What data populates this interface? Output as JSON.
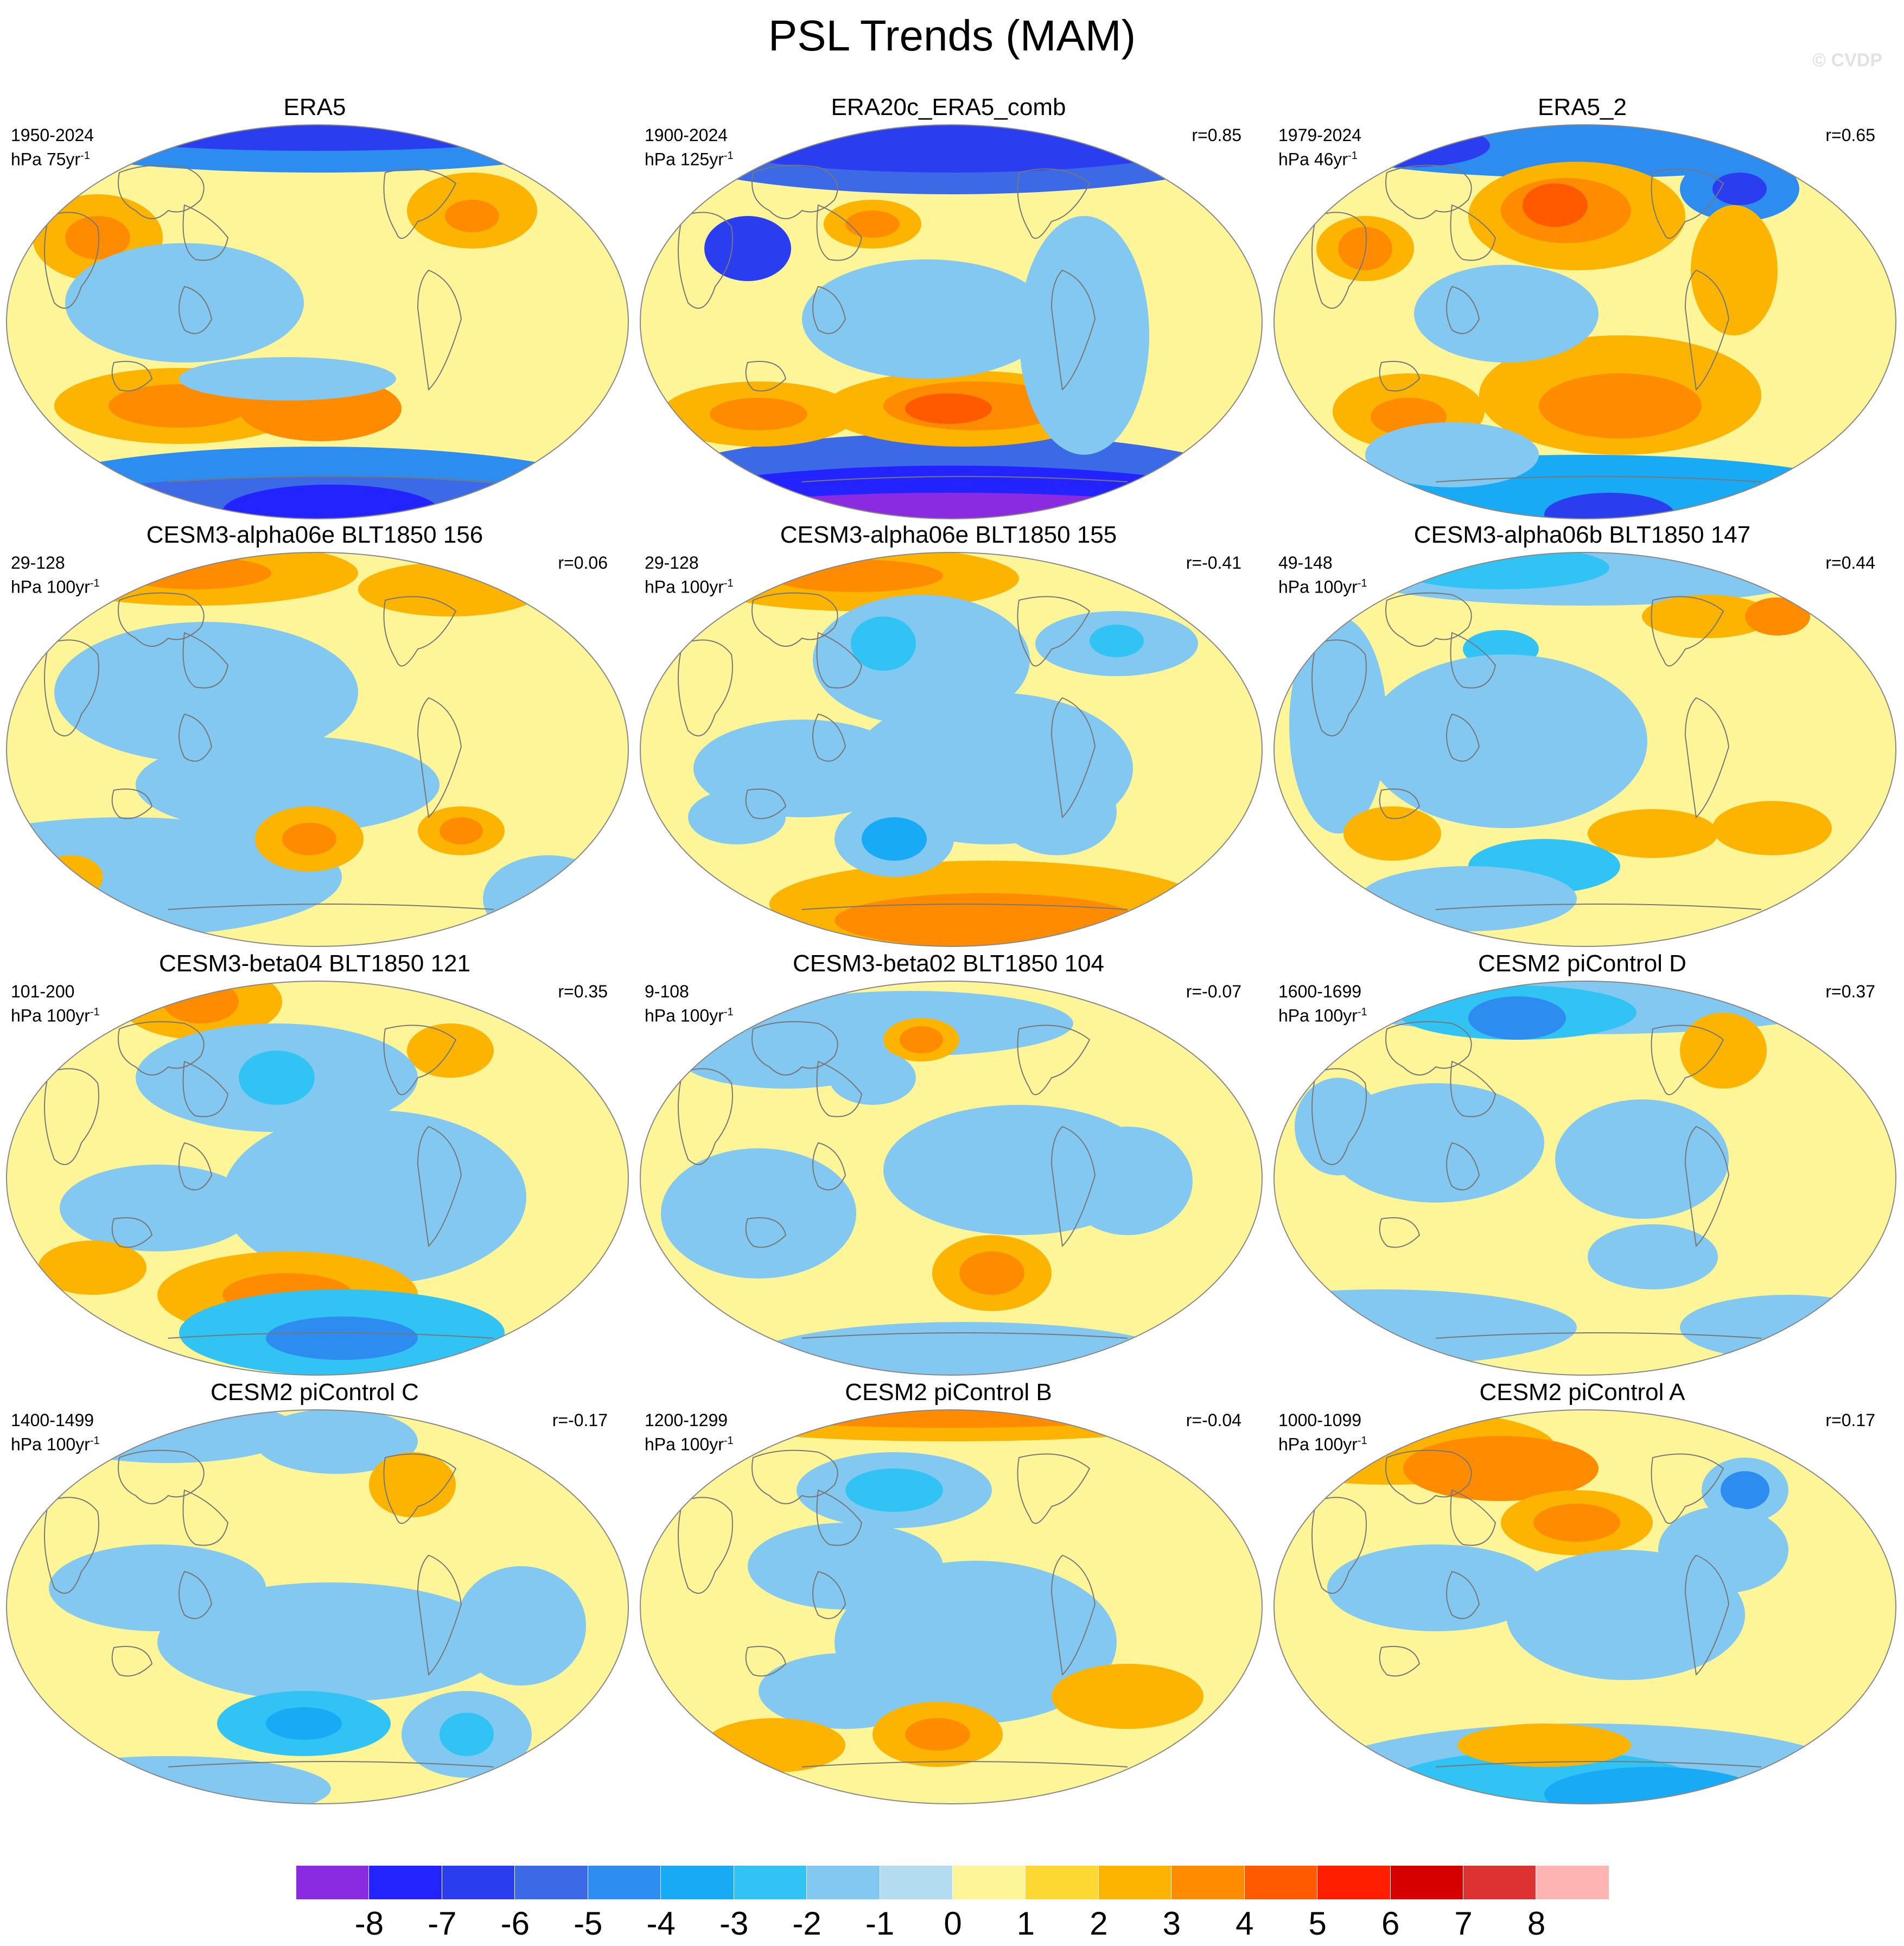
{
  "title": "PSL Trends (MAM)",
  "watermark": "© CVDP",
  "colors": {
    "neutral_blue": "#b4dcf0",
    "neutral_yellow": "#fdf598",
    "ocean_bg": "#b4dcf0",
    "coast": "#777777"
  },
  "panels": [
    {
      "title": "ERA5",
      "period": "1950-2024",
      "units_prefix": "hPa 75yr",
      "exponent": "-1",
      "r": ""
    },
    {
      "title": "ERA20c_ERA5_comb",
      "period": "1900-2024",
      "units_prefix": "hPa 125yr",
      "exponent": "-1",
      "r": "r=0.85"
    },
    {
      "title": "ERA5_2",
      "period": "1979-2024",
      "units_prefix": "hPa 46yr",
      "exponent": "-1",
      "r": "r=0.65"
    },
    {
      "title": "CESM3-alpha06e BLT1850 156",
      "period": "29-128",
      "units_prefix": "hPa 100yr",
      "exponent": "-1",
      "r": "r=0.06"
    },
    {
      "title": "CESM3-alpha06e BLT1850 155",
      "period": "29-128",
      "units_prefix": "hPa 100yr",
      "exponent": "-1",
      "r": "r=-0.41"
    },
    {
      "title": "CESM3-alpha06b BLT1850 147",
      "period": "49-148",
      "units_prefix": "hPa 100yr",
      "exponent": "-1",
      "r": "r=0.44"
    },
    {
      "title": "CESM3-beta04 BLT1850 121",
      "period": "101-200",
      "units_prefix": "hPa 100yr",
      "exponent": "-1",
      "r": "r=0.35"
    },
    {
      "title": "CESM3-beta02 BLT1850 104",
      "period": "9-108",
      "units_prefix": "hPa 100yr",
      "exponent": "-1",
      "r": "r=-0.07"
    },
    {
      "title": "CESM2 piControl D",
      "period": "1600-1699",
      "units_prefix": "hPa 100yr",
      "exponent": "-1",
      "r": "r=0.37"
    },
    {
      "title": "CESM2 piControl C",
      "period": "1400-1499",
      "units_prefix": "hPa 100yr",
      "exponent": "-1",
      "r": "r=-0.17"
    },
    {
      "title": "CESM2 piControl B",
      "period": "1200-1299",
      "units_prefix": "hPa 100yr",
      "exponent": "-1",
      "r": "r=-0.04"
    },
    {
      "title": "CESM2 piControl A",
      "period": "1000-1099",
      "units_prefix": "hPa 100yr",
      "exponent": "-1",
      "r": "r=0.17"
    }
  ],
  "colorbar": {
    "labels": [
      "-8",
      "-7",
      "-6",
      "-5",
      "-4",
      "-3",
      "-2",
      "-1",
      "0",
      "1",
      "2",
      "3",
      "4",
      "5",
      "6",
      "7",
      "8"
    ],
    "colors": [
      "#8a2be2",
      "#2323ff",
      "#2a3ef0",
      "#3c6ae6",
      "#2d8cf0",
      "#19aaf5",
      "#32c3f5",
      "#82c8f0",
      "#b4dcf0",
      "#fdf598",
      "#fdd732",
      "#fdb400",
      "#ff8c00",
      "#ff5a00",
      "#ff1e00",
      "#d70000",
      "#dc3232",
      "#ffb4b4"
    ]
  }
}
